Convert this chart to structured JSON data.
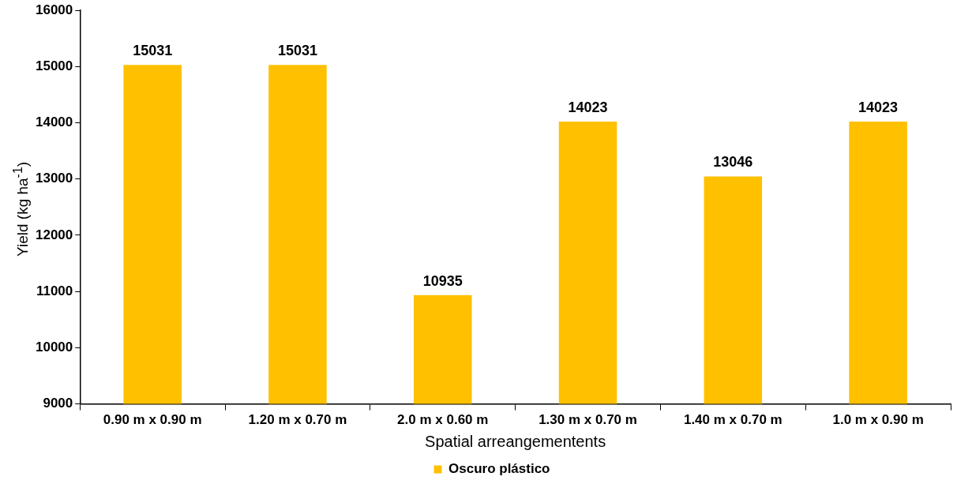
{
  "chart_data": {
    "type": "bar",
    "xlabel": "Spatial arreangementents",
    "ylabel": "Yield (kg ha$^{-1}$)",
    "categories": [
      "0.90 m x 0.90 m",
      "1.20 m x 0.70 m",
      "2.0 m x 0.60 m",
      "1.30 m x 0.70 m",
      "1.40 m x 0.70 m",
      "1.0 m x 0.90 m"
    ],
    "series": [
      {
        "name": "Oscuro plástico",
        "color": "#ffc000",
        "values": [
          15031,
          15031,
          10935,
          14023,
          13046,
          14023
        ]
      }
    ],
    "ylim": [
      9000,
      16000
    ],
    "yticks": [
      9000,
      10000,
      11000,
      12000,
      13000,
      14000,
      15000,
      16000
    ],
    "grid": false,
    "legend": "bottom",
    "data_labels": true
  }
}
